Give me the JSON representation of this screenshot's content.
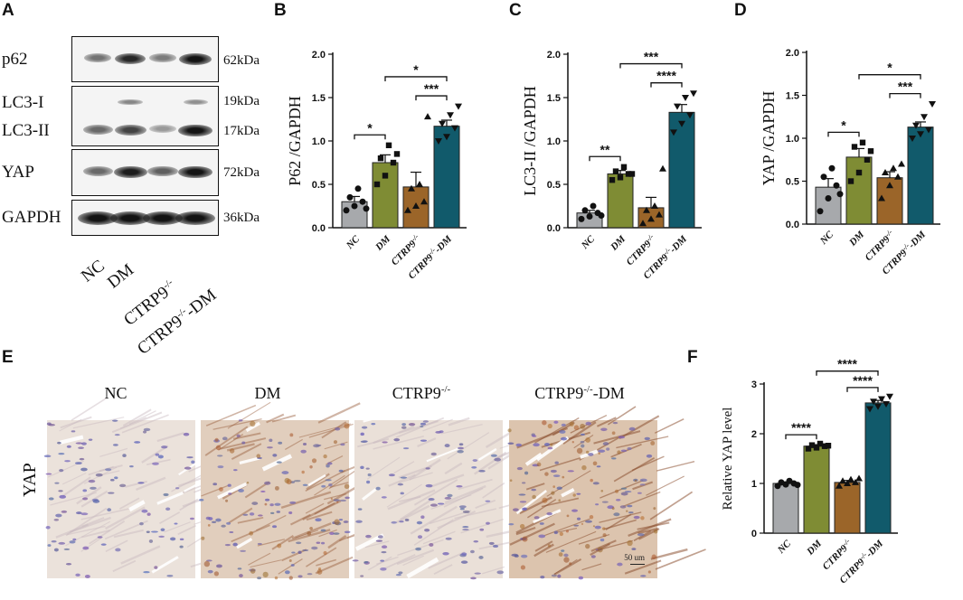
{
  "panels": {
    "A": "A",
    "B": "B",
    "C": "C",
    "D": "D",
    "E": "E",
    "F": "F"
  },
  "western_blot": {
    "rows": [
      {
        "label": "p62",
        "kda": "62kDa"
      },
      {
        "label": "LC3-I",
        "kda": "19kDa"
      },
      {
        "label": "LC3-II",
        "kda": "17kDa"
      },
      {
        "label": "YAP",
        "kda": "72kDa"
      },
      {
        "label": "GAPDH",
        "kda": "36kDa"
      }
    ],
    "lanes": [
      "NC",
      "DM",
      "CTRP9",
      "CTRP9"
    ],
    "lane_sup": [
      "",
      "",
      "-/-",
      "-/-"
    ],
    "lane_suffix": [
      "",
      "",
      "",
      "-DM"
    ],
    "band_intensity": {
      "p62": [
        0.45,
        0.85,
        0.4,
        0.95
      ],
      "LC3-I": [
        0.05,
        0.35,
        0.05,
        0.3
      ],
      "LC3-II": [
        0.5,
        0.7,
        0.25,
        0.95
      ],
      "YAP": [
        0.5,
        0.9,
        0.55,
        0.95
      ],
      "GAPDH": [
        0.95,
        0.95,
        0.95,
        0.95
      ]
    }
  },
  "ihc": {
    "row_label": "YAP",
    "titles": [
      "NC",
      "DM",
      "CTRP9",
      "CTRP9"
    ],
    "title_sup": [
      "",
      "",
      "-/-",
      "-/-"
    ],
    "title_suffix": [
      "",
      "",
      "",
      "-DM"
    ],
    "stain_level": [
      0.05,
      0.55,
      0.1,
      0.8
    ],
    "scale_bar": "50 um"
  },
  "chart_data": [
    {
      "id": "B",
      "type": "bar",
      "ylabel": "P62 /GAPDH",
      "ylim": [
        0,
        2.0
      ],
      "yticks": [
        "0.0",
        "0.5",
        "1.0",
        "1.5",
        "2.0"
      ],
      "categories": [
        "NC",
        "DM",
        "CTRP9",
        "CTRP9"
      ],
      "category_sup": [
        "",
        "",
        "-/-",
        "-/-"
      ],
      "category_suffix": [
        "",
        "",
        "",
        "-DM"
      ],
      "values": [
        0.3,
        0.75,
        0.47,
        1.17
      ],
      "errors": [
        0.06,
        0.09,
        0.17,
        0.07
      ],
      "markers": [
        "circle",
        "square",
        "triangle",
        "triangle-down"
      ],
      "points": [
        [
          0.2,
          0.25,
          0.3,
          0.35,
          0.45,
          0.22
        ],
        [
          0.5,
          0.6,
          0.75,
          0.8,
          0.95,
          0.85
        ],
        [
          0.2,
          0.25,
          0.3,
          0.45,
          0.5,
          1.28
        ],
        [
          1.0,
          1.05,
          1.15,
          1.2,
          1.3,
          1.4
        ]
      ],
      "colors": [
        "#a7a9ac",
        "#7f8c34",
        "#9b6529",
        "#115a6b"
      ],
      "comparisons": [
        {
          "from": 0,
          "to": 1,
          "label": "*"
        },
        {
          "from": 2,
          "to": 3,
          "label": "***"
        },
        {
          "from": 1,
          "to": 3,
          "label": "*"
        }
      ]
    },
    {
      "id": "C",
      "type": "bar",
      "ylabel": "LC3-II /GAPDH",
      "ylim": [
        0,
        2.0
      ],
      "yticks": [
        "0.0",
        "0.5",
        "1.0",
        "1.5",
        "2.0"
      ],
      "categories": [
        "NC",
        "DM",
        "CTRP9",
        "CTRP9"
      ],
      "category_sup": [
        "",
        "",
        "-/-",
        "-/-"
      ],
      "category_suffix": [
        "",
        "",
        "",
        "-DM"
      ],
      "values": [
        0.17,
        0.62,
        0.23,
        1.33
      ],
      "errors": [
        0.03,
        0.04,
        0.12,
        0.09
      ],
      "markers": [
        "circle",
        "square",
        "triangle",
        "triangle-down"
      ],
      "points": [
        [
          0.1,
          0.13,
          0.17,
          0.2,
          0.25,
          0.14
        ],
        [
          0.55,
          0.58,
          0.62,
          0.65,
          0.7,
          0.62
        ],
        [
          0.05,
          0.1,
          0.15,
          0.2,
          0.25,
          0.68
        ],
        [
          1.1,
          1.2,
          1.3,
          1.4,
          1.5,
          1.55
        ]
      ],
      "colors": [
        "#a7a9ac",
        "#7f8c34",
        "#9b6529",
        "#115a6b"
      ],
      "comparisons": [
        {
          "from": 0,
          "to": 1,
          "label": "**"
        },
        {
          "from": 2,
          "to": 3,
          "label": "****"
        },
        {
          "from": 1,
          "to": 3,
          "label": "***"
        }
      ]
    },
    {
      "id": "D",
      "type": "bar",
      "ylabel": "YAP /GAPDH",
      "ylim": [
        0,
        2.0
      ],
      "yticks": [
        "0.0",
        "0.5",
        "1.0",
        "1.5",
        "2.0"
      ],
      "categories": [
        "NC",
        "DM",
        "CTRP9",
        "CTRP9"
      ],
      "category_sup": [
        "",
        "",
        "-/-",
        "-/-"
      ],
      "category_suffix": [
        "",
        "",
        "",
        "-DM"
      ],
      "values": [
        0.43,
        0.78,
        0.54,
        1.13
      ],
      "errors": [
        0.1,
        0.1,
        0.07,
        0.06
      ],
      "markers": [
        "circle",
        "square",
        "triangle",
        "triangle-down"
      ],
      "points": [
        [
          0.15,
          0.3,
          0.45,
          0.55,
          0.65,
          0.35
        ],
        [
          0.5,
          0.6,
          0.75,
          0.9,
          0.95,
          0.85
        ],
        [
          0.3,
          0.45,
          0.55,
          0.6,
          0.65,
          0.7
        ],
        [
          1.0,
          1.05,
          1.1,
          1.15,
          1.25,
          1.4
        ]
      ],
      "colors": [
        "#a7a9ac",
        "#7f8c34",
        "#9b6529",
        "#115a6b"
      ],
      "comparisons": [
        {
          "from": 0,
          "to": 1,
          "label": "*"
        },
        {
          "from": 2,
          "to": 3,
          "label": "***"
        },
        {
          "from": 1,
          "to": 3,
          "label": "*"
        }
      ]
    },
    {
      "id": "F",
      "type": "bar",
      "ylabel": "Relative YAP level",
      "ylim": [
        0,
        3
      ],
      "yticks": [
        "0",
        "1",
        "2",
        "3"
      ],
      "categories": [
        "NC",
        "DM",
        "CTRP9",
        "CTRP9"
      ],
      "category_sup": [
        "",
        "",
        "-/-",
        "-/-"
      ],
      "category_suffix": [
        "",
        "",
        "",
        "-DM"
      ],
      "values": [
        1.0,
        1.75,
        1.02,
        2.62
      ],
      "errors": [
        0.03,
        0.03,
        0.04,
        0.05
      ],
      "markers": [
        "circle",
        "square",
        "triangle",
        "triangle-down"
      ],
      "points": [
        [
          0.95,
          0.98,
          1.0,
          1.02,
          1.05,
          0.97
        ],
        [
          1.7,
          1.72,
          1.75,
          1.77,
          1.8,
          1.76
        ],
        [
          0.95,
          1.0,
          1.02,
          1.05,
          1.08,
          1.1
        ],
        [
          2.5,
          2.55,
          2.6,
          2.65,
          2.7,
          2.75
        ]
      ],
      "colors": [
        "#a7a9ac",
        "#7f8c34",
        "#9b6529",
        "#115a6b"
      ],
      "comparisons": [
        {
          "from": 0,
          "to": 1,
          "label": "****"
        },
        {
          "from": 2,
          "to": 3,
          "label": "****"
        },
        {
          "from": 1,
          "to": 3,
          "label": "****"
        }
      ]
    }
  ]
}
